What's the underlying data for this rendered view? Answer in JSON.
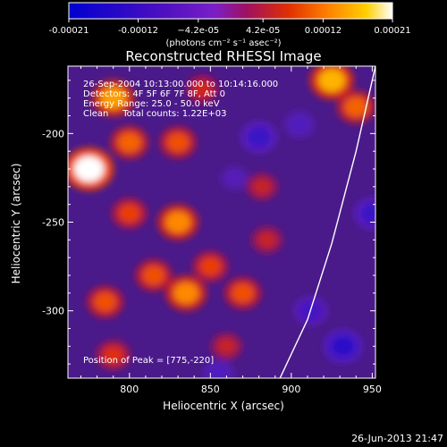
{
  "chart_data": {
    "type": "heatmap",
    "title": "Reconstructed RHESSI Image",
    "xlabel": "Heliocentric X (arcsec)",
    "ylabel": "Heliocentric Y (arcsec)",
    "xlim": [
      762,
      952
    ],
    "ylim": [
      -338,
      -162
    ],
    "x_ticks": [
      800,
      850,
      900,
      950
    ],
    "y_ticks": [
      -200,
      -250,
      -300
    ],
    "colorbar": {
      "range": [
        -0.00021,
        0.00021
      ],
      "tick_values": [
        -0.00021,
        -0.00012,
        -4.2e-05,
        4.2e-05,
        0.00012,
        0.00021
      ],
      "tick_labels": [
        "-0.00021",
        "-0.00012",
        "−4.2e-05",
        "4.2e-05",
        "0.00012",
        "0.00021"
      ],
      "unit_label": "(photons cm⁻² s⁻¹ asec⁻²)",
      "colors": [
        "#0000d0",
        "#7a1fc8",
        "#c00040",
        "#ff6000",
        "#ffd000",
        "#ffffff"
      ]
    },
    "annotations": {
      "line1": "26-Sep-2004 10:13:00.000 to 10:14:16.000",
      "line2": "Detectors: 4F 5F 6F 7F 8F, Att 0",
      "line3": "Energy Range: 25.0 - 50.0 keV",
      "line4": "Clean     Total counts: 1.22E+03",
      "peak": "Position of Peak = [775,-220]"
    },
    "limb_curve": [
      [
        952,
        -162
      ],
      [
        940,
        -210
      ],
      [
        925,
        -262
      ],
      [
        910,
        -305
      ],
      [
        893,
        -338
      ]
    ],
    "emission_blobs": [
      {
        "x": 775,
        "y": -220,
        "value": 0.00021
      },
      {
        "x": 790,
        "y": -180,
        "value": 0.00016
      },
      {
        "x": 800,
        "y": -205,
        "value": 0.00013
      },
      {
        "x": 830,
        "y": -205,
        "value": 0.00012
      },
      {
        "x": 845,
        "y": -175,
        "value": 9e-05
      },
      {
        "x": 830,
        "y": -250,
        "value": 0.00015
      },
      {
        "x": 815,
        "y": -280,
        "value": 0.00012
      },
      {
        "x": 835,
        "y": -290,
        "value": 0.00015
      },
      {
        "x": 850,
        "y": -275,
        "value": 0.00011
      },
      {
        "x": 870,
        "y": -290,
        "value": 0.00012
      },
      {
        "x": 785,
        "y": -295,
        "value": 0.00012
      },
      {
        "x": 790,
        "y": -325,
        "value": 0.0001
      },
      {
        "x": 885,
        "y": -260,
        "value": 8e-05
      },
      {
        "x": 925,
        "y": -170,
        "value": 0.00017
      },
      {
        "x": 940,
        "y": -185,
        "value": 0.00013
      },
      {
        "x": 882,
        "y": -230,
        "value": 8e-05
      },
      {
        "x": 860,
        "y": -320,
        "value": 8e-05
      },
      {
        "x": 800,
        "y": -245,
        "value": 0.00011
      }
    ],
    "negative_blobs": [
      {
        "x": 880,
        "y": -202,
        "value": -0.00012
      },
      {
        "x": 932,
        "y": -320,
        "value": -0.00014
      },
      {
        "x": 912,
        "y": -300,
        "value": -0.0001
      },
      {
        "x": 855,
        "y": -335,
        "value": -8e-05
      },
      {
        "x": 950,
        "y": -245,
        "value": -0.00012
      },
      {
        "x": 905,
        "y": -195,
        "value": -8e-05
      },
      {
        "x": 865,
        "y": -225,
        "value": -6e-05
      }
    ]
  },
  "footer": {
    "timestamp": "26-Jun-2013 21:47"
  }
}
